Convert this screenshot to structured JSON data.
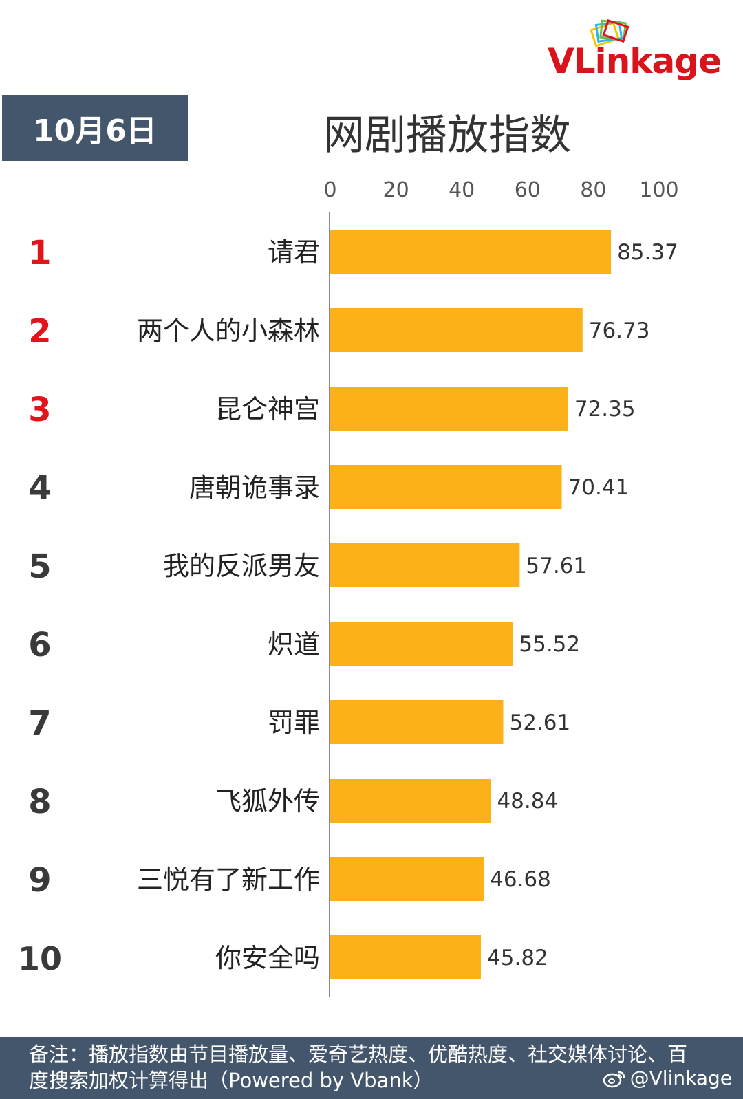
{
  "header": {
    "date": "10月6日",
    "title": "网剧播放指数",
    "brand": "VLinkage"
  },
  "colors": {
    "bar": "#fbb117",
    "rank_top": "#e3121b",
    "rank_other": "#3a3a3a",
    "badge": "#44566c"
  },
  "chart_data": {
    "type": "bar",
    "orientation": "horizontal",
    "ranks": [
      "1",
      "2",
      "3",
      "4",
      "5",
      "6",
      "7",
      "8",
      "9",
      "10"
    ],
    "categories": [
      "请君",
      "两个人的小森林",
      "昆仑神宫",
      "唐朝诡事录",
      "我的反派男友",
      "炽道",
      "罚罪",
      "飞狐外传",
      "三悦有了新工作",
      "你安全吗"
    ],
    "values": [
      85.37,
      76.73,
      72.35,
      70.41,
      57.61,
      55.52,
      52.61,
      48.84,
      46.68,
      45.82
    ],
    "value_labels": [
      "85.37",
      "76.73",
      "72.35",
      "70.41",
      "57.61",
      "55.52",
      "52.61",
      "48.84",
      "46.68",
      "45.82"
    ],
    "xticks": [
      "0",
      "20",
      "40",
      "60",
      "80",
      "100"
    ],
    "xlim": [
      0,
      100
    ],
    "grid": false,
    "axis_position": "top"
  },
  "footer": {
    "note": "备注：播放指数由节目播放量、爱奇艺热度、优酷热度、社交媒体讨论、百度搜索加权计算得出（Powered by Vbank）",
    "weibo": "@Vlinkage",
    "weibo_icon": "weibo-icon"
  }
}
